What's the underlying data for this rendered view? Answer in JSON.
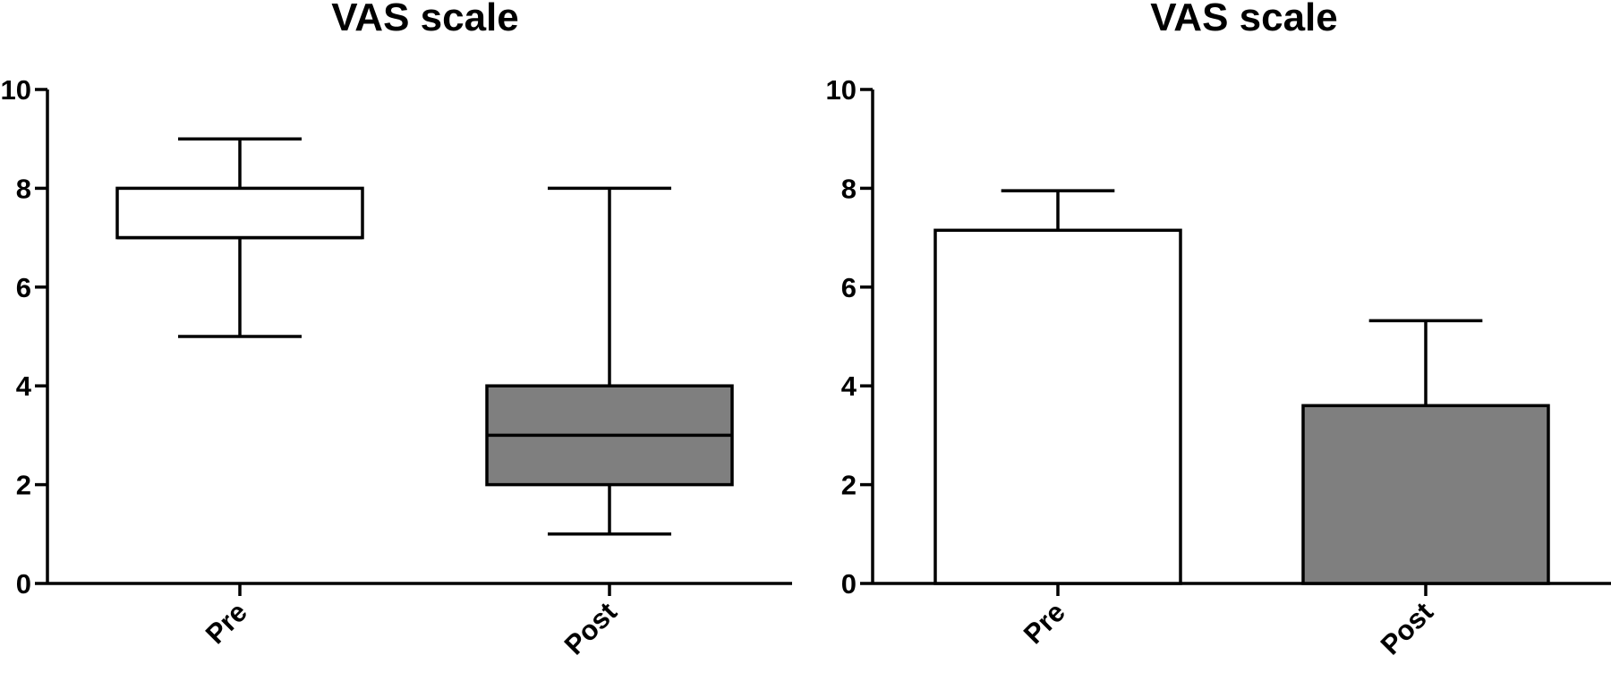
{
  "chart_data": [
    {
      "type": "box",
      "title": "VAS scale",
      "xlabel": "",
      "ylabel": "",
      "categories": [
        "Pre",
        "Post"
      ],
      "ylim": [
        0,
        10
      ],
      "yticks": [
        0,
        2,
        4,
        6,
        8,
        10
      ],
      "grid": false,
      "boxes": [
        {
          "category": "Pre",
          "min": 5,
          "q1": 7,
          "median": 7,
          "q3": 8,
          "max": 9,
          "fill": "#ffffff"
        },
        {
          "category": "Post",
          "min": 1,
          "q1": 2,
          "median": 3,
          "q3": 4,
          "max": 8,
          "fill": "#7f7f7f"
        }
      ]
    },
    {
      "type": "bar",
      "title": "VAS scale",
      "xlabel": "",
      "ylabel": "",
      "categories": [
        "Pre",
        "Post"
      ],
      "values": [
        7.15,
        3.6
      ],
      "errors": [
        0.8,
        1.72
      ],
      "ylim": [
        0,
        10
      ],
      "yticks": [
        0,
        2,
        4,
        6,
        8,
        10
      ],
      "grid": false,
      "colors": [
        "#ffffff",
        "#7f7f7f"
      ]
    }
  ]
}
